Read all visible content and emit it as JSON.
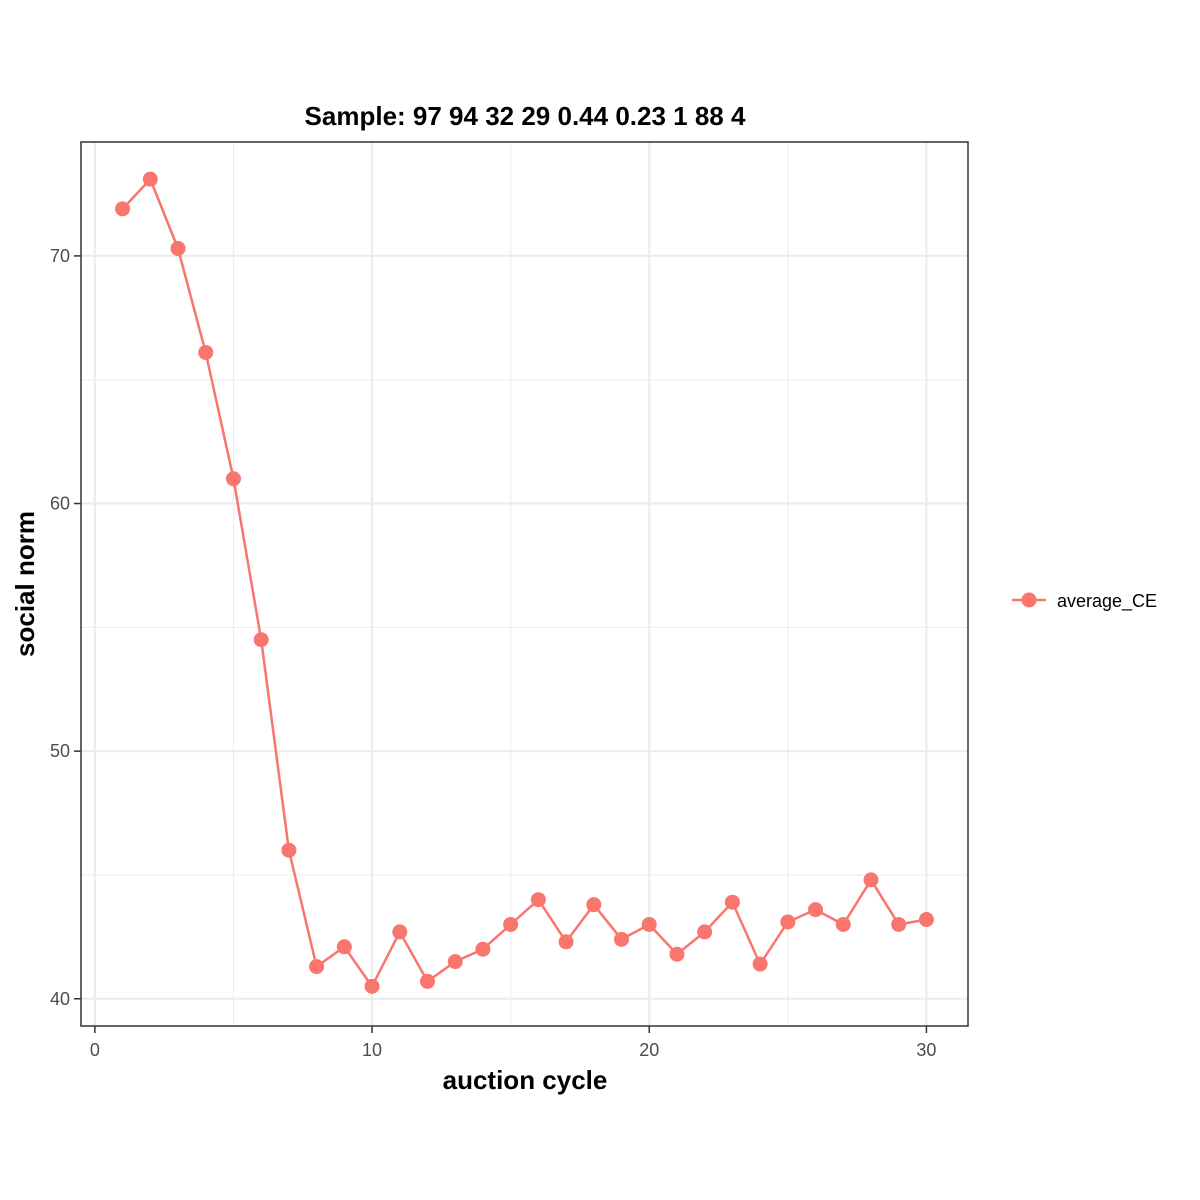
{
  "chart_data": {
    "type": "line",
    "title": "Sample: 97 94 32 29 0.44 0.23 1 88 4",
    "xlabel": "auction cycle",
    "ylabel": "social norm",
    "xlim": [
      -0.5,
      31.5
    ],
    "ylim": [
      38.9,
      74.6
    ],
    "x_ticks": [
      0,
      10,
      20,
      30
    ],
    "x_tick_labels": [
      "0",
      "10",
      "20",
      "30"
    ],
    "y_ticks": [
      40,
      50,
      60,
      70
    ],
    "y_tick_labels": [
      "40",
      "50",
      "60",
      "70"
    ],
    "x_minor_ticks": [
      5,
      15,
      25
    ],
    "y_minor_ticks": [
      45,
      55,
      65
    ],
    "grid": true,
    "legend_position": "right",
    "series": [
      {
        "name": "average_CE",
        "color": "#F8766D",
        "x": [
          1,
          2,
          3,
          4,
          5,
          6,
          7,
          8,
          9,
          10,
          11,
          12,
          13,
          14,
          15,
          16,
          17,
          18,
          19,
          20,
          21,
          22,
          23,
          24,
          25,
          26,
          27,
          28,
          29,
          30
        ],
        "values": [
          71.9,
          73.1,
          70.3,
          66.1,
          61.0,
          54.5,
          46.0,
          41.3,
          42.1,
          40.5,
          42.7,
          40.7,
          41.5,
          42.0,
          43.0,
          44.0,
          42.3,
          43.8,
          42.4,
          43.0,
          41.8,
          42.7,
          43.9,
          41.4,
          43.1,
          43.6,
          43.0,
          44.8,
          43.0,
          43.2
        ]
      }
    ]
  }
}
